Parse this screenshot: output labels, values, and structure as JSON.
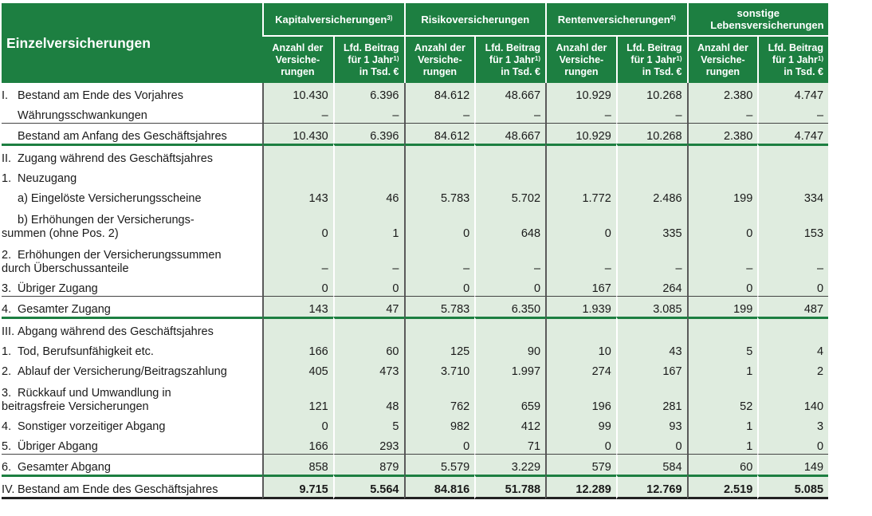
{
  "title": "Einzelversicherungen",
  "groups": [
    {
      "label": "Kapitalversicherungen",
      "sup": "3)"
    },
    {
      "label": "Risikoversicherungen",
      "sup": ""
    },
    {
      "label": "Rentenversicherungen",
      "sup": "4)"
    },
    {
      "label": "sonstige Lebensversicherungen",
      "sup": ""
    }
  ],
  "subheaders": {
    "count": "Anzahl der Versiche-rungen",
    "premium": "Lfd. Beitrag für 1 Jahr",
    "premium_sup": "1)",
    "premium_unit": "in Tsd. €"
  },
  "rows": [
    {
      "num": "I.",
      "label": "Bestand am Ende des Vorjahres",
      "values": [
        "10.430",
        "6.396",
        "84.612",
        "48.667",
        "10.929",
        "10.268",
        "2.380",
        "4.747"
      ]
    },
    {
      "num": "",
      "label": "Währungsschwankungen",
      "values": [
        "–",
        "–",
        "–",
        "–",
        "–",
        "–",
        "–",
        "–"
      ]
    },
    {
      "num": "",
      "label": "Bestand am Anfang des Geschäftsjahres",
      "values": [
        "10.430",
        "6.396",
        "84.612",
        "48.667",
        "10.929",
        "10.268",
        "2.380",
        "4.747"
      ]
    },
    {
      "num": "II.",
      "label": "Zugang während des Geschäftsjahres",
      "values": [
        "",
        "",
        "",
        "",
        "",
        "",
        "",
        ""
      ]
    },
    {
      "num": "1.",
      "label": "Neuzugang",
      "values": [
        "",
        "",
        "",
        "",
        "",
        "",
        "",
        ""
      ]
    },
    {
      "num": "",
      "label": "a) Eingelöste Versicherungsscheine",
      "values": [
        "143",
        "46",
        "5.783",
        "5.702",
        "1.772",
        "2.486",
        "199",
        "334"
      ]
    },
    {
      "num": "",
      "label": "b) Erhöhungen der Versicherungs-summen (ohne Pos. 2)",
      "values": [
        "0",
        "1",
        "0",
        "648",
        "0",
        "335",
        "0",
        "153"
      ]
    },
    {
      "num": "2.",
      "label": "Erhöhungen der Versicherungssummen durch Überschussanteile",
      "values": [
        "–",
        "–",
        "–",
        "–",
        "–",
        "–",
        "–",
        "–"
      ]
    },
    {
      "num": "3.",
      "label": "Übriger Zugang",
      "values": [
        "0",
        "0",
        "0",
        "0",
        "167",
        "264",
        "0",
        "0"
      ]
    },
    {
      "num": "4.",
      "label": "Gesamter Zugang",
      "values": [
        "143",
        "47",
        "5.783",
        "6.350",
        "1.939",
        "3.085",
        "199",
        "487"
      ]
    },
    {
      "num": "III.",
      "label": "Abgang während des Geschäftsjahres",
      "values": [
        "",
        "",
        "",
        "",
        "",
        "",
        "",
        ""
      ]
    },
    {
      "num": "1.",
      "label": "Tod, Berufsunfähigkeit etc.",
      "values": [
        "166",
        "60",
        "125",
        "90",
        "10",
        "43",
        "5",
        "4"
      ]
    },
    {
      "num": "2.",
      "label": "Ablauf der Versicherung/Beitragszahlung",
      "values": [
        "405",
        "473",
        "3.710",
        "1.997",
        "274",
        "167",
        "1",
        "2"
      ]
    },
    {
      "num": "3.",
      "label": "Rückkauf und Umwandlung in beitragsfreie Versicherungen",
      "values": [
        "121",
        "48",
        "762",
        "659",
        "196",
        "281",
        "52",
        "140"
      ]
    },
    {
      "num": "4.",
      "label": "Sonstiger vorzeitiger Abgang",
      "values": [
        "0",
        "5",
        "982",
        "412",
        "99",
        "93",
        "1",
        "3"
      ]
    },
    {
      "num": "5.",
      "label": "Übriger Abgang",
      "values": [
        "166",
        "293",
        "0",
        "71",
        "0",
        "0",
        "1",
        "0"
      ]
    },
    {
      "num": "6.",
      "label": "Gesamter Abgang",
      "values": [
        "858",
        "879",
        "5.579",
        "3.229",
        "579",
        "584",
        "60",
        "149"
      ]
    },
    {
      "num": "IV.",
      "label": "Bestand am Ende des Geschäftsjahres",
      "values": [
        "9.715",
        "5.564",
        "84.816",
        "51.788",
        "12.289",
        "12.769",
        "2.519",
        "5.085"
      ]
    }
  ]
}
